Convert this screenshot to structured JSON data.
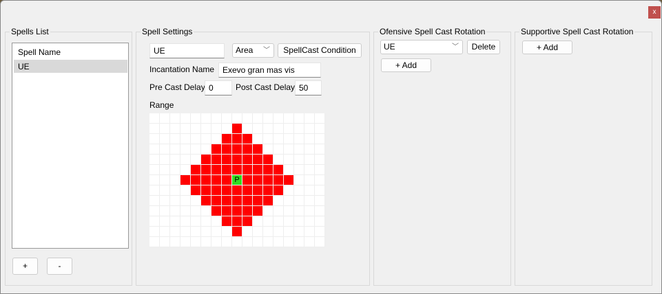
{
  "window": {
    "close_label": "x"
  },
  "spells_list": {
    "title": "Spells List",
    "header": "Spell Name",
    "items": [
      "UE"
    ],
    "add_label": "+",
    "remove_label": "-"
  },
  "settings": {
    "title": "Spell Settings",
    "name_value": "UE",
    "type_value": "Area",
    "condition_label": "SpellCast Condition",
    "incantation_label": "Incantation Name",
    "incantation_value": "Exevo gran mas vis",
    "pre_label": "Pre Cast Delay",
    "pre_value": "0",
    "post_label": "Post Cast Delay",
    "post_value": "50",
    "range_label": "Range",
    "range_grid": [
      ".................",
      "........x........",
      ".......xxx.......",
      "......xxxxx......",
      ".....xxxxxxx.....",
      "....xxxxxxxxx....",
      "...xxxxxPxxxxx...",
      "....xxxxxxxxx....",
      ".....xxxxxxx.....",
      "......xxxxx......",
      ".......xxx.......",
      "........x........",
      "................."
    ],
    "player_label": "P",
    "area_color": "#ff0000",
    "player_color": "#33dd22"
  },
  "offensive": {
    "title": "Ofensive Spell Cast Rotation",
    "selected": "UE",
    "delete_label": "Delete",
    "add_label": "+ Add"
  },
  "supportive": {
    "title": "Supportive Spell Cast Rotation",
    "add_label": "+ Add"
  }
}
